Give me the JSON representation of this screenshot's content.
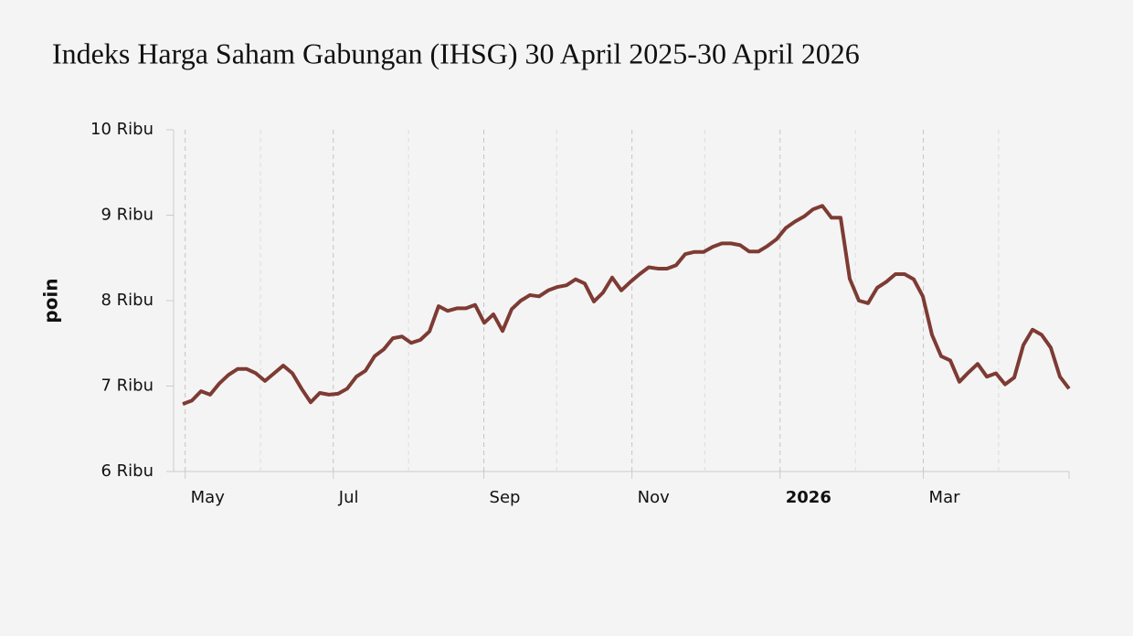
{
  "chart_data": {
    "type": "line",
    "title": "Indeks Harga Saham Gabungan (IHSG) 30 April 2025-30 April 2026",
    "y_label": "poin",
    "xlim": [
      "2025-04-30",
      "2026-04-30"
    ],
    "xticks": [
      {
        "value": "2025-05",
        "label": "May"
      },
      {
        "value": "2025-07",
        "label": "Jul"
      },
      {
        "value": "2025-09",
        "label": "Sep"
      },
      {
        "value": "2025-11",
        "label": "Nov"
      },
      {
        "value": "2026-01",
        "label": "2026"
      },
      {
        "value": "2026-03",
        "label": "Mar"
      }
    ],
    "minor_xticks": [
      "2025-06",
      "2025-08",
      "2025-10",
      "2025-12",
      "2026-02",
      "2026-04"
    ],
    "ylim": [
      6000,
      10000
    ],
    "yticks": [
      {
        "value": 6000,
        "label": "6 Ribu"
      },
      {
        "value": 7000,
        "label": "7 Ribu"
      },
      {
        "value": 8000,
        "label": "8 Ribu"
      },
      {
        "value": 9000,
        "label": "9 Ribu"
      },
      {
        "value": 10000,
        "label": "10 Ribu"
      }
    ],
    "grid": true,
    "series": [
      {
        "name": "IHSG",
        "color": "#7d3b33",
        "values": [
          6790,
          6830,
          6940,
          6900,
          7030,
          7130,
          7200,
          7200,
          7150,
          7060,
          7150,
          7240,
          7150,
          6970,
          6810,
          6920,
          6900,
          6910,
          6970,
          7110,
          7180,
          7350,
          7430,
          7560,
          7580,
          7505,
          7540,
          7640,
          7935,
          7880,
          7910,
          7910,
          7950,
          7740,
          7840,
          7645,
          7900,
          8000,
          8065,
          8050,
          8120,
          8160,
          8180,
          8250,
          8200,
          7990,
          8095,
          8270,
          8120,
          8220,
          8310,
          8390,
          8375,
          8375,
          8415,
          8545,
          8570,
          8570,
          8630,
          8670,
          8670,
          8650,
          8575,
          8575,
          8640,
          8720,
          8850,
          8925,
          8985,
          9070,
          9110,
          8970,
          8970,
          8255,
          8000,
          7970,
          8150,
          8220,
          8310,
          8310,
          8250,
          8050,
          7600,
          7350,
          7300,
          7050,
          7160,
          7260,
          7110,
          7150,
          7020,
          7100,
          7480,
          7660,
          7600,
          7450,
          7110,
          6970
        ]
      }
    ]
  }
}
